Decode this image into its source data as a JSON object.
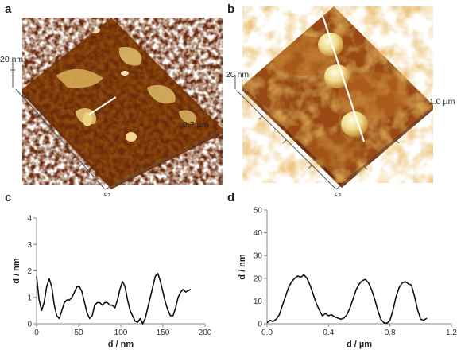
{
  "figure": {
    "panels": [
      {
        "label": "a",
        "z_scale": "20 nm",
        "xy_scale": "0.7 µm",
        "origin": "0"
      },
      {
        "label": "b",
        "z_scale": "20 nm",
        "xy_scale": "1.0 µm",
        "origin": "0"
      },
      {
        "label": "c"
      },
      {
        "label": "d"
      }
    ],
    "colors": {
      "afm_low": "#5a1f08",
      "afm_mid": "#b8651c",
      "afm_high": "#f2e6a0",
      "line_cut": "#ffffff",
      "trace": "#111111"
    }
  },
  "chart_data": [
    {
      "panel": "c",
      "type": "line",
      "xlabel": "d / nm",
      "ylabel": "d / nm",
      "xlim": [
        0,
        200
      ],
      "ylim": [
        0,
        4
      ],
      "xticks": [
        "0",
        "50",
        "100",
        "150",
        "200"
      ],
      "yticks": [
        "0",
        "1",
        "2",
        "3",
        "4"
      ],
      "series": [
        {
          "x": [
            0,
            3,
            6,
            9,
            12,
            15,
            18,
            21,
            24,
            27,
            30,
            33,
            36,
            39,
            42,
            45,
            48,
            51,
            54,
            57,
            60,
            63,
            66,
            69,
            72,
            75,
            78,
            81,
            84,
            87,
            90,
            93,
            96,
            99,
            102,
            105,
            108,
            111,
            114,
            117,
            120,
            123,
            126,
            129,
            132,
            135,
            138,
            141,
            144,
            147,
            150,
            153,
            156,
            159,
            162,
            165,
            168,
            171,
            174,
            177,
            180,
            183
          ],
          "y": [
            1.8,
            0.9,
            0.5,
            0.8,
            1.4,
            1.7,
            1.4,
            0.7,
            0.3,
            0.2,
            0.5,
            0.8,
            0.9,
            0.9,
            1.0,
            1.2,
            1.4,
            1.4,
            1.2,
            0.8,
            0.4,
            0.2,
            0.3,
            0.7,
            0.8,
            0.8,
            0.7,
            0.8,
            0.8,
            0.7,
            0.7,
            0.6,
            0.9,
            1.3,
            1.6,
            1.4,
            0.9,
            0.5,
            0.3,
            0.1,
            0.05,
            0.2,
            0.0,
            0.2,
            0.6,
            1.0,
            1.4,
            1.8,
            1.9,
            1.6,
            1.2,
            0.8,
            0.5,
            0.3,
            0.3,
            0.6,
            1.0,
            1.2,
            1.3,
            1.2,
            1.25,
            1.3
          ]
        }
      ]
    },
    {
      "panel": "d",
      "type": "line",
      "xlabel": "d / µm",
      "ylabel": "d / nm",
      "xlim": [
        0,
        1.2
      ],
      "ylim": [
        0,
        50
      ],
      "xticks": [
        "0.0",
        "0.4",
        "0.8",
        "1.2"
      ],
      "yticks": [
        "0",
        "10",
        "20",
        "30",
        "40",
        "50"
      ],
      "series": [
        {
          "x": [
            0.0,
            0.02,
            0.04,
            0.06,
            0.08,
            0.1,
            0.12,
            0.14,
            0.16,
            0.18,
            0.2,
            0.22,
            0.24,
            0.26,
            0.28,
            0.3,
            0.32,
            0.34,
            0.36,
            0.38,
            0.4,
            0.42,
            0.44,
            0.46,
            0.48,
            0.5,
            0.52,
            0.54,
            0.56,
            0.58,
            0.6,
            0.62,
            0.64,
            0.66,
            0.68,
            0.7,
            0.72,
            0.74,
            0.76,
            0.78,
            0.8,
            0.82,
            0.84,
            0.86,
            0.88,
            0.9,
            0.92,
            0.94,
            0.96,
            0.98,
            1.0,
            1.02,
            1.04
          ],
          "y": [
            0.5,
            1.5,
            1.0,
            2.0,
            4.0,
            8.0,
            12.0,
            16.0,
            18.5,
            20.0,
            21.0,
            20.5,
            21.5,
            20.0,
            17.0,
            13.0,
            9.0,
            6.0,
            3.5,
            4.5,
            3.5,
            4.0,
            3.0,
            2.5,
            2.0,
            2.5,
            4.0,
            7.0,
            11.0,
            15.0,
            17.5,
            19.0,
            19.5,
            18.0,
            15.0,
            11.0,
            6.0,
            2.0,
            0.5,
            0.2,
            1.5,
            6.0,
            12.0,
            16.0,
            18.0,
            18.5,
            17.5,
            17.0,
            12.0,
            6.0,
            2.0,
            1.5,
            2.5
          ]
        }
      ]
    }
  ]
}
